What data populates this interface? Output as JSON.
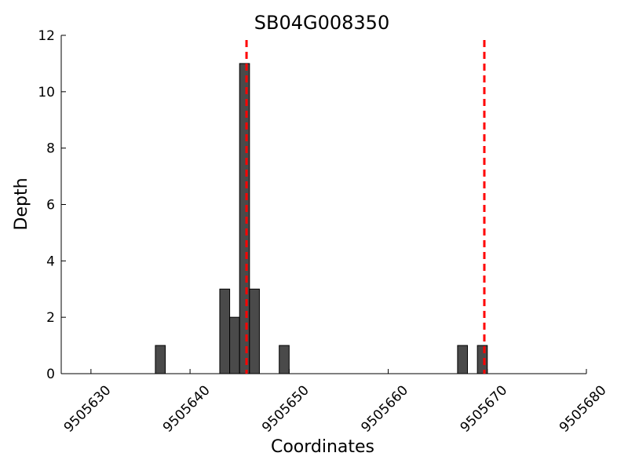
{
  "chart_data": {
    "type": "bar",
    "title": "SB04G008350",
    "xlabel": "Coordinates",
    "ylabel": "Depth",
    "xlim": [
      9505627,
      9505680
    ],
    "ylim": [
      0,
      12
    ],
    "xticks": [
      9505630,
      9505640,
      9505650,
      9505660,
      9505670,
      9505680
    ],
    "yticks": [
      0,
      2,
      4,
      6,
      8,
      10,
      12
    ],
    "bin_width": 1,
    "bars": [
      {
        "x": 9505637,
        "value": 1
      },
      {
        "x": 9505643.5,
        "value": 3
      },
      {
        "x": 9505644.5,
        "value": 2
      },
      {
        "x": 9505645.5,
        "value": 11
      },
      {
        "x": 9505646.5,
        "value": 3
      },
      {
        "x": 9505649.5,
        "value": 1
      },
      {
        "x": 9505667.5,
        "value": 1
      },
      {
        "x": 9505669.5,
        "value": 1
      }
    ],
    "vlines": [
      9505645.7,
      9505669.7
    ],
    "bar_color": "#4a4a4a",
    "vline_color": "#ff0000",
    "grid": false,
    "legend": "none"
  }
}
